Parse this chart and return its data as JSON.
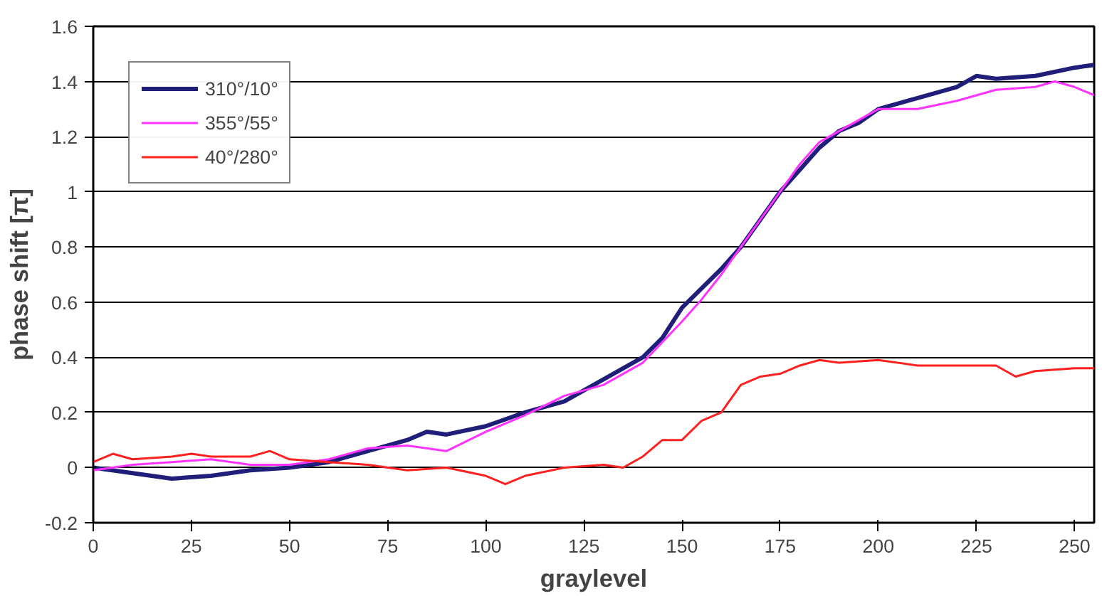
{
  "chart_data": {
    "type": "line",
    "xlabel": "graylevel",
    "ylabel": "phase shift [π]",
    "xlim": [
      0,
      255
    ],
    "xticks": [
      0,
      25,
      50,
      75,
      100,
      125,
      150,
      175,
      200,
      225,
      250
    ],
    "ylim": [
      -0.2,
      1.6
    ],
    "yticks": [
      -0.2,
      0,
      0.2,
      0.4,
      0.6,
      0.8,
      1,
      1.2,
      1.4,
      1.6
    ],
    "grid": "y",
    "legend": "top left",
    "marker": "none",
    "line_style": "solid",
    "series": [
      {
        "name": "310°/10°",
        "color": "#1f1f7a",
        "x": [
          0,
          10,
          20,
          30,
          40,
          50,
          60,
          70,
          80,
          85,
          90,
          100,
          110,
          120,
          130,
          140,
          145,
          150,
          155,
          160,
          165,
          170,
          175,
          180,
          185,
          190,
          195,
          200,
          210,
          220,
          225,
          230,
          240,
          250,
          255
        ],
        "values": [
          0,
          -0.02,
          -0.04,
          -0.03,
          -0.01,
          0,
          0.02,
          0.06,
          0.1,
          0.13,
          0.12,
          0.15,
          0.2,
          0.24,
          0.32,
          0.4,
          0.47,
          0.58,
          0.65,
          0.72,
          0.8,
          0.9,
          1.0,
          1.08,
          1.16,
          1.22,
          1.25,
          1.3,
          1.34,
          1.38,
          1.42,
          1.41,
          1.42,
          1.45,
          1.46
        ]
      },
      {
        "name": "355°/55°",
        "color": "#ff33ff",
        "x": [
          0,
          10,
          20,
          30,
          40,
          50,
          60,
          70,
          80,
          90,
          100,
          110,
          120,
          130,
          140,
          150,
          155,
          160,
          165,
          170,
          175,
          180,
          185,
          190,
          195,
          200,
          210,
          220,
          230,
          240,
          245,
          250,
          255
        ],
        "values": [
          -0.01,
          0.01,
          0.02,
          0.03,
          0.01,
          0.01,
          0.03,
          0.07,
          0.08,
          0.06,
          0.13,
          0.19,
          0.26,
          0.3,
          0.38,
          0.53,
          0.61,
          0.7,
          0.8,
          0.9,
          1.0,
          1.1,
          1.18,
          1.22,
          1.26,
          1.3,
          1.3,
          1.33,
          1.37,
          1.38,
          1.4,
          1.38,
          1.35
        ]
      },
      {
        "name": "40°/280°",
        "color": "#ff2020",
        "x": [
          0,
          5,
          10,
          20,
          25,
          30,
          40,
          45,
          50,
          60,
          70,
          80,
          90,
          100,
          105,
          110,
          120,
          130,
          135,
          140,
          145,
          150,
          155,
          160,
          165,
          170,
          175,
          180,
          185,
          190,
          200,
          210,
          220,
          230,
          235,
          240,
          250,
          255
        ],
        "values": [
          0.02,
          0.05,
          0.03,
          0.04,
          0.05,
          0.04,
          0.04,
          0.06,
          0.03,
          0.02,
          0.01,
          -0.01,
          0,
          -0.03,
          -0.06,
          -0.03,
          0,
          0.01,
          0,
          0.04,
          0.1,
          0.1,
          0.17,
          0.2,
          0.3,
          0.33,
          0.34,
          0.37,
          0.39,
          0.38,
          0.39,
          0.37,
          0.37,
          0.37,
          0.33,
          0.35,
          0.36,
          0.36
        ]
      }
    ]
  }
}
